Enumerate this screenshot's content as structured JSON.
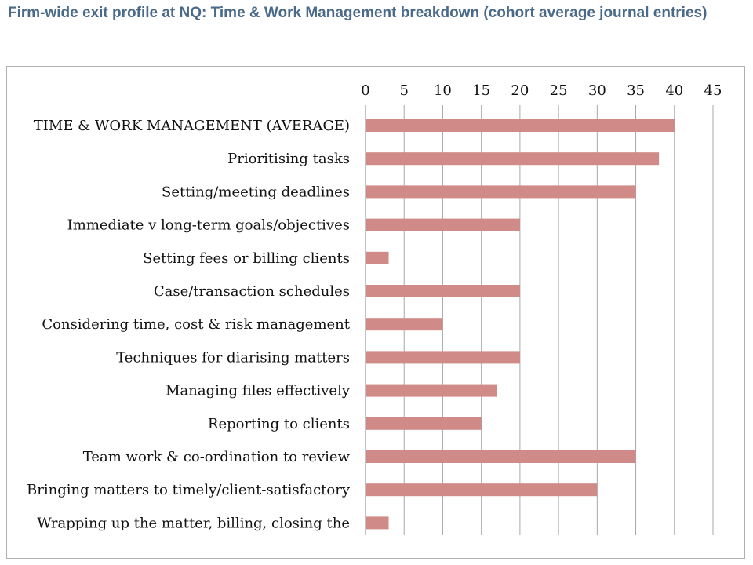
{
  "page": {
    "title": "Firm-wide exit profile at NQ: Time & Work Management breakdown (cohort average journal entries)"
  },
  "colors": {
    "bar": "#d08a87",
    "grid": "#a8a8a8",
    "title": "#4a6a8a"
  },
  "chart_data": {
    "type": "bar",
    "orientation": "horizontal",
    "title": "",
    "xlabel": "",
    "ylabel": "",
    "x_axis_position": "top",
    "xlim": [
      0,
      45
    ],
    "x_ticks": [
      0,
      5,
      10,
      15,
      20,
      25,
      30,
      35,
      40,
      45
    ],
    "grid": true,
    "legend": "none",
    "categories": [
      "TIME & WORK MANAGEMENT (AVERAGE)",
      "Prioritising tasks",
      "Setting/meeting deadlines",
      "Immediate v long-term goals/objectives",
      "Setting fees or billing clients",
      "Case/transaction schedules",
      "Considering time, cost & risk management",
      "Techniques for diarising matters",
      "Managing files effectively",
      "Reporting to clients",
      "Team work & co-ordination to review",
      "Bringing matters to timely/client-satisfactory",
      "Wrapping up the matter, billing, closing the"
    ],
    "values": [
      40,
      38,
      35,
      20,
      3,
      20,
      10,
      20,
      17,
      15,
      35,
      30,
      3
    ]
  }
}
